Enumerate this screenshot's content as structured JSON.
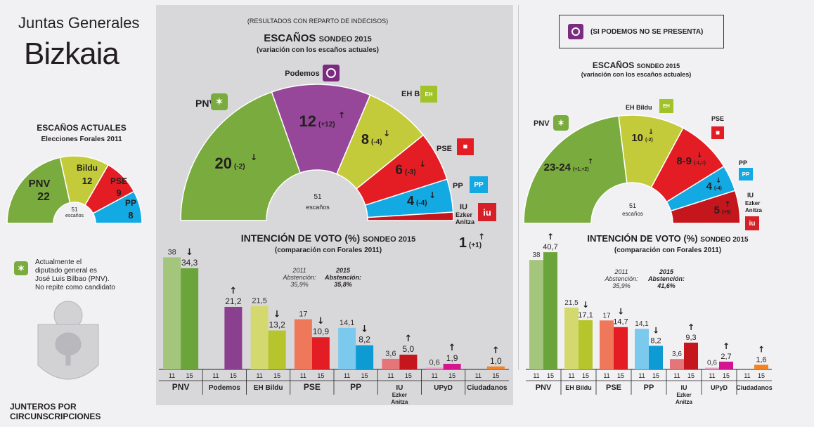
{
  "header": {
    "title_small": "Juntas Generales",
    "title_big": "Bizkaia"
  },
  "left": {
    "title": "ESCAÑOS ACTUALES",
    "subtitle": "Elecciones Forales 2011",
    "center_n": "51",
    "center_label": "escaños",
    "note": [
      "Actualmente el",
      "diputado general es",
      "José Luis Bilbao (PNV).",
      "No repite como candidato"
    ],
    "footer": [
      "JUNTEROS POR",
      "CIRCUNSCRIPCIONES"
    ]
  },
  "mid": {
    "note": "(RESULTADOS CON REPARTO DE INDECISOS)",
    "title": "ESCAÑOS",
    "title_suffix": "SONDEO 2015",
    "subtitle": "(variación con los escaños actuales)",
    "center_n": "51",
    "center_label": "escaños",
    "vote_title": "INTENCIÓN DE VOTO (%)",
    "vote_suffix": "SONDEO 2015",
    "vote_subtitle": "(comparación con Forales 2011)",
    "abst_2011": [
      "2011",
      "Abstención:",
      "35,9%"
    ],
    "abst_2015": [
      "2015",
      "Abstención:",
      "35,8%"
    ]
  },
  "right": {
    "note": "(SI PODEMOS NO SE PRESENTA)",
    "title": "ESCAÑOS",
    "title_suffix": "SONDEO 2015",
    "subtitle": "(variación con los escaños actuales)",
    "center_n": "51",
    "center_label": "escaños",
    "vote_title": "INTENCIÓN DE VOTO (%)",
    "vote_suffix": "SONDEO 2015",
    "vote_subtitle": "(comparación con Forales 2011)",
    "abst_2011": [
      "2011",
      "Abstención:",
      "35,9%"
    ],
    "abst_2015": [
      "2015",
      "Abstención:",
      "41,6%"
    ]
  },
  "chart_data": [
    {
      "type": "pie",
      "id": "seats-2011",
      "title": "ESCAÑOS ACTUALES",
      "subtitle": "Elecciones Forales 2011",
      "slices": [
        {
          "label": "PNV",
          "value": 22,
          "color": "#7aab3e"
        },
        {
          "label": "Bildu",
          "value": 12,
          "color": "#c3cb3a"
        },
        {
          "label": "PSE",
          "value": 9,
          "color": "#e41d25"
        },
        {
          "label": "PP",
          "value": 8,
          "color": "#13a9e2"
        }
      ]
    },
    {
      "type": "pie",
      "id": "seats-2015",
      "title": "ESCAÑOS SONDEO 2015",
      "subtitle": "(variación con los escaños actuales)",
      "slices": [
        {
          "label": "PNV",
          "text": "20",
          "change": "(-2)",
          "value": 20,
          "color": "#7aab3e"
        },
        {
          "label": "Podemos",
          "text": "12",
          "change": "(+12)",
          "value": 12,
          "color": "#97479a"
        },
        {
          "label": "EH Bildu",
          "text": "8",
          "change": "(-4)",
          "value": 8,
          "color": "#c3cb3a"
        },
        {
          "label": "PSE",
          "text": "6",
          "change": "(-3)",
          "value": 6,
          "color": "#e41d25"
        },
        {
          "label": "PP",
          "text": "4",
          "change": "(-4)",
          "value": 4,
          "color": "#13a9e2"
        },
        {
          "label": "IU Ezker Anitza",
          "text": "1",
          "change": "(+1)",
          "value": 1,
          "color": "#c4161c"
        }
      ]
    },
    {
      "type": "pie",
      "id": "seats-2015-nopodemos",
      "title": "ESCAÑOS SONDEO 2015",
      "subtitle": "(variación con los escaños actuales)",
      "slices": [
        {
          "label": "PNV",
          "text": "23-24",
          "change": "(+1,+2)",
          "value": 23.5,
          "color": "#7aab3e"
        },
        {
          "label": "EH Bildu",
          "text": "10",
          "change": "(-2)",
          "value": 10,
          "color": "#c3cb3a"
        },
        {
          "label": "PSE",
          "text": "8-9",
          "change": "(-1,=)",
          "value": 8.5,
          "color": "#e41d25"
        },
        {
          "label": "PP",
          "text": "4",
          "change": "(-4)",
          "value": 4,
          "color": "#13a9e2"
        },
        {
          "label": "IU Ezker Anitza",
          "text": "5",
          "change": "(+5)",
          "value": 5,
          "color": "#c4161c"
        }
      ]
    },
    {
      "type": "bar",
      "id": "vote-2015",
      "title": "INTENCIÓN DE VOTO (%) SONDEO 2015",
      "subtitle": "(comparación con Forales 2011)",
      "categories": [
        "PNV",
        "Podemos",
        "EH Bildu",
        "PSE",
        "PP",
        "IU Ezker Anitza",
        "UPyD",
        "Ciudadanos"
      ],
      "series": [
        {
          "name": "11",
          "values": [
            38,
            null,
            21.5,
            17,
            14.1,
            3.6,
            0.6,
            null
          ]
        },
        {
          "name": "15",
          "values": [
            34.3,
            21.2,
            13.2,
            10.9,
            8.2,
            5.0,
            1.9,
            1.0
          ]
        }
      ],
      "labels11": [
        "38",
        "",
        "21,5",
        "17",
        "14,1",
        "3,6",
        "0,6",
        ""
      ],
      "labels15": [
        "34,3",
        "21,2",
        "13,2",
        "10,9",
        "8,2",
        "5,0",
        "1,9",
        "1,0"
      ],
      "arrows": [
        "down",
        "up",
        "down",
        "down",
        "down",
        "up",
        "up",
        "up"
      ],
      "colors11": [
        "#a3c57c",
        "#b7a0bd",
        "#d4d96f",
        "#ef785a",
        "#7bcaee",
        "#e4767a",
        "#e9a0c7",
        "#f8c08e"
      ],
      "colors15": [
        "#6aa43b",
        "#8a3f8f",
        "#b6c52c",
        "#e41d25",
        "#0e9bd4",
        "#c4161c",
        "#d6138e",
        "#f58220"
      ]
    },
    {
      "type": "bar",
      "id": "vote-2015-nopodemos",
      "title": "INTENCIÓN DE VOTO (%) SONDEO 2015",
      "subtitle": "(comparación con Forales 2011)",
      "categories": [
        "PNV",
        "EH Bildu",
        "PSE",
        "PP",
        "IU Ezker Anitza",
        "UPyD",
        "Ciudadanos"
      ],
      "series": [
        {
          "name": "11",
          "values": [
            38,
            21.5,
            17,
            14.1,
            3.6,
            0.6,
            null
          ]
        },
        {
          "name": "15",
          "values": [
            40.7,
            17.1,
            14.7,
            8.2,
            9.3,
            2.7,
            1.6
          ]
        }
      ],
      "labels11": [
        "38",
        "21,5",
        "17",
        "14,1",
        "3,6",
        "0,6",
        ""
      ],
      "labels15": [
        "40,7",
        "17,1",
        "14,7",
        "8,2",
        "9,3",
        "2,7",
        "1,6"
      ],
      "arrows": [
        "up",
        "down",
        "down",
        "down",
        "up",
        "up",
        "up"
      ],
      "colors11": [
        "#a3c57c",
        "#d4d96f",
        "#ef785a",
        "#7bcaee",
        "#e4767a",
        "#e9a0c7",
        "#f8c08e"
      ],
      "colors15": [
        "#6aa43b",
        "#b6c52c",
        "#e41d25",
        "#0e9bd4",
        "#c4161c",
        "#d6138e",
        "#f58220"
      ]
    }
  ]
}
